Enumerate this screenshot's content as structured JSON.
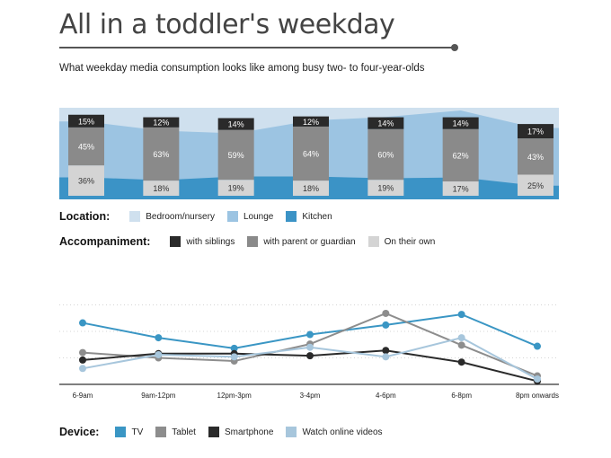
{
  "title": "All in a toddler's weekday",
  "subtitle": "What weekday media consumption looks like among busy two- to four-year-olds",
  "legend_location": {
    "label": "Location:",
    "items": [
      {
        "name": "Bedroom/nursery",
        "color": "#cfe0ee"
      },
      {
        "name": "Lounge",
        "color": "#9cc4e2"
      },
      {
        "name": "Kitchen",
        "color": "#3b93c6"
      }
    ]
  },
  "legend_accompaniment": {
    "label": "Accompaniment:",
    "items": [
      {
        "name": "with siblings",
        "color": "#2a2a2a"
      },
      {
        "name": "with parent or guardian",
        "color": "#8a8a8a"
      },
      {
        "name": "On their own",
        "color": "#d4d4d4"
      }
    ]
  },
  "legend_device": {
    "label": "Device:",
    "items": [
      {
        "name": "TV",
        "color": "#3a96c4"
      },
      {
        "name": "Tablet",
        "color": "#8d8d8d"
      },
      {
        "name": "Smartphone",
        "color": "#2a2a2a"
      },
      {
        "name": "Watch online videos",
        "color": "#a7c6dc"
      }
    ]
  },
  "chart_data": [
    {
      "type": "bar",
      "stacked": true,
      "categories": [
        "6-9am",
        "9am-12pm",
        "12pm-3pm",
        "3-4pm",
        "4-6pm",
        "6-8pm",
        "8pm onwards"
      ],
      "series": [
        {
          "name": "On their own",
          "values": [
            36,
            18,
            19,
            18,
            19,
            17,
            25
          ],
          "labels": [
            "36%",
            "18%",
            "19%",
            "18%",
            "19%",
            "17%",
            "25%"
          ],
          "color": "#d4d4d4"
        },
        {
          "name": "with parent or guardian",
          "values": [
            45,
            63,
            59,
            64,
            60,
            62,
            43
          ],
          "labels": [
            "45%",
            "63%",
            "59%",
            "64%",
            "60%",
            "62%",
            "43%"
          ],
          "color": "#8a8a8a"
        },
        {
          "name": "with siblings",
          "values": [
            15,
            12,
            14,
            12,
            14,
            14,
            17
          ],
          "labels": [
            "15%",
            "12%",
            "14%",
            "12%",
            "14%",
            "14%",
            "17%"
          ],
          "color": "#2a2a2a"
        }
      ],
      "background_areas": [
        {
          "name": "Bedroom/nursery",
          "values": [
            100,
            100,
            100,
            100,
            100,
            100,
            100
          ],
          "color": "#cfe0ee"
        },
        {
          "name": "Lounge",
          "values": [
            85,
            75,
            72,
            86,
            90,
            97,
            78
          ],
          "color": "#9cc4e2"
        },
        {
          "name": "Kitchen",
          "values": [
            24,
            21,
            25,
            25,
            23,
            24,
            15
          ],
          "color": "#3b93c6"
        }
      ]
    },
    {
      "type": "line",
      "x": [
        "6-9am",
        "9am-12pm",
        "12pm-3pm",
        "3-4pm",
        "4-6pm",
        "6-8pm",
        "8pm onwards"
      ],
      "ylim": [
        0,
        100
      ],
      "grid": true,
      "series": [
        {
          "name": "TV",
          "values": [
            58,
            44,
            34,
            47,
            56,
            66,
            36
          ],
          "color": "#3a96c4"
        },
        {
          "name": "Tablet",
          "values": [
            30,
            25,
            22,
            38,
            67,
            37,
            8
          ],
          "color": "#8d8d8d"
        },
        {
          "name": "Smartphone",
          "values": [
            23,
            29,
            29,
            27,
            32,
            21,
            3
          ],
          "color": "#2a2a2a"
        },
        {
          "name": "Watch online videos",
          "values": [
            15,
            28,
            26,
            35,
            26,
            44,
            5
          ],
          "color": "#a7c6dc"
        }
      ]
    }
  ]
}
